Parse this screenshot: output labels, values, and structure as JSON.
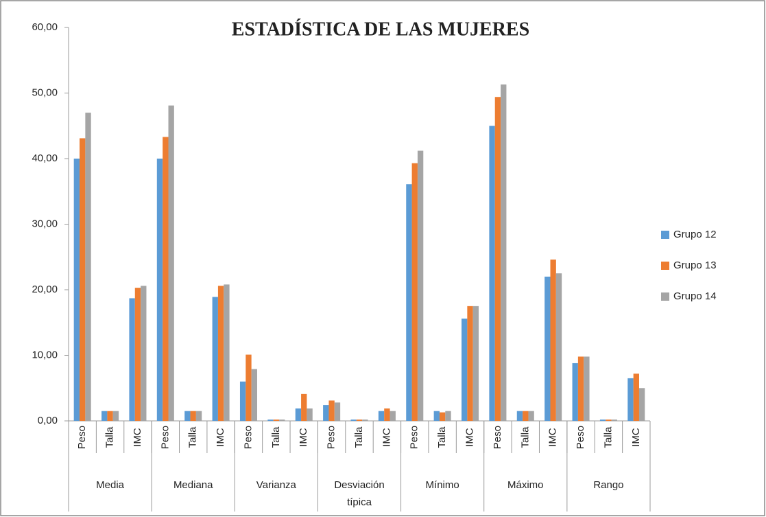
{
  "chart_data": {
    "type": "bar",
    "title": "ESTADÍSTICA DE LAS MUJERES",
    "groups": [
      "Media",
      "Mediana",
      "Varianza",
      "Desviación típica",
      "Mínimo",
      "Máximo",
      "Rango"
    ],
    "categories": [
      "Peso",
      "Talla",
      "IMC",
      "Peso",
      "Talla",
      "IMC",
      "Peso",
      "Talla",
      "IMC",
      "Peso",
      "Talla",
      "IMC",
      "Peso",
      "Talla",
      "IMC",
      "Peso",
      "Talla",
      "IMC",
      "Peso",
      "Talla",
      "IMC"
    ],
    "series": [
      {
        "name": "Grupo 12",
        "color": "#5b9bd5",
        "values": [
          40.0,
          1.5,
          18.7,
          40.0,
          1.5,
          18.9,
          6.0,
          0.2,
          1.9,
          2.4,
          0.2,
          1.5,
          36.1,
          1.5,
          15.6,
          45.0,
          1.5,
          22.0,
          8.8,
          0.2,
          6.5
        ]
      },
      {
        "name": "Grupo 13",
        "color": "#ed7d31",
        "values": [
          43.1,
          1.5,
          20.3,
          43.3,
          1.5,
          20.6,
          10.1,
          0.2,
          4.1,
          3.1,
          0.2,
          1.9,
          39.3,
          1.3,
          17.5,
          49.4,
          1.5,
          24.6,
          9.8,
          0.2,
          7.2
        ]
      },
      {
        "name": "Grupo 14",
        "color": "#a5a5a5",
        "values": [
          47.0,
          1.5,
          20.6,
          48.1,
          1.5,
          20.8,
          7.9,
          0.2,
          1.9,
          2.8,
          0.2,
          1.5,
          41.2,
          1.5,
          17.5,
          51.3,
          1.5,
          22.5,
          9.8,
          0.2,
          5.0
        ]
      }
    ],
    "ylim": [
      0,
      60
    ],
    "yticks": [
      {
        "value": 0,
        "label": "0,00"
      },
      {
        "value": 10,
        "label": "10,00"
      },
      {
        "value": 20,
        "label": "20,00"
      },
      {
        "value": 30,
        "label": "30,00"
      },
      {
        "value": 40,
        "label": "40,00"
      },
      {
        "value": 50,
        "label": "50,00"
      },
      {
        "value": 60,
        "label": "60,00"
      }
    ],
    "legend": "right"
  }
}
